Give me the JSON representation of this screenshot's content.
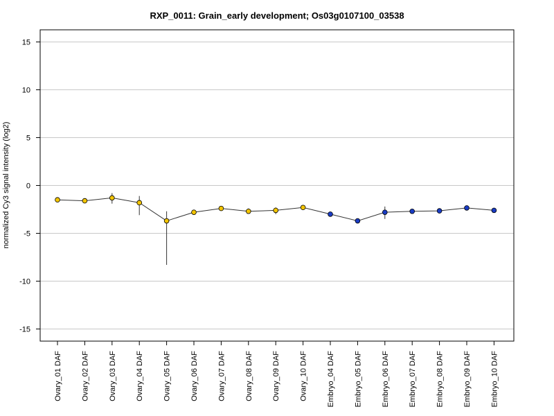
{
  "chart_data": {
    "type": "line",
    "title": "RXP_0011: Grain_early development; Os03g0107100_03538",
    "xlabel": "",
    "ylabel": "normalized Cy3 signal intensity (log2)",
    "ylim": [
      -16,
      16
    ],
    "yticks": [
      -15,
      -10,
      -5,
      0,
      5,
      10,
      15
    ],
    "ytick_labels": [
      "-15",
      "-10",
      "-5",
      "0",
      "5",
      "10",
      "15"
    ],
    "grid": "horizontal",
    "categories": [
      "Ovary_01 DAF",
      "Ovary_02 DAF",
      "Ovary_03 DAF",
      "Ovary_04 DAF",
      "Ovary_05 DAF",
      "Ovary_06 DAF",
      "Ovary_07 DAF",
      "Ovary_08 DAF",
      "Ovary_09 DAF",
      "Ovary_10 DAF",
      "Embryo_04 DAF",
      "Embryo_05 DAF",
      "Embryo_06 DAF",
      "Embryo_07 DAF",
      "Embryo_08 DAF",
      "Embryo_09 DAF",
      "Embryo_10 DAF"
    ],
    "series": [
      {
        "values": [
          -1.5,
          -1.6,
          -1.3,
          -1.8,
          -3.7,
          -2.8,
          -2.4,
          -2.7,
          -2.6,
          -2.3,
          -3.0,
          -3.7,
          -2.8,
          -2.7,
          -2.65,
          -2.35,
          -2.6
        ],
        "err_low": [
          -1.7,
          -1.8,
          -1.9,
          -3.1,
          -8.3,
          -3.0,
          -2.6,
          -2.9,
          -3.0,
          -2.4,
          -3.2,
          -3.9,
          -3.5,
          -2.9,
          -2.85,
          -2.5,
          -2.75
        ],
        "err_high": [
          -1.3,
          -1.4,
          -0.8,
          -1.1,
          -2.7,
          -2.6,
          -2.2,
          -2.4,
          -2.3,
          -2.15,
          -2.9,
          -3.5,
          -2.2,
          -2.55,
          -2.5,
          -2.2,
          -2.45
        ],
        "point_colors": [
          "#f2c400",
          "#f2c400",
          "#f2c400",
          "#f2c400",
          "#f2c400",
          "#f2c400",
          "#f2c400",
          "#f2c400",
          "#f2c400",
          "#f2c400",
          "#1a3cc4",
          "#1a3cc4",
          "#1a3cc4",
          "#1a3cc4",
          "#1a3cc4",
          "#1a3cc4",
          "#1a3cc4"
        ]
      }
    ],
    "colors": {
      "ovary": "#f2c400",
      "embryo": "#1a3cc4",
      "line": "#333333",
      "grid": "#c8c8c8"
    }
  }
}
